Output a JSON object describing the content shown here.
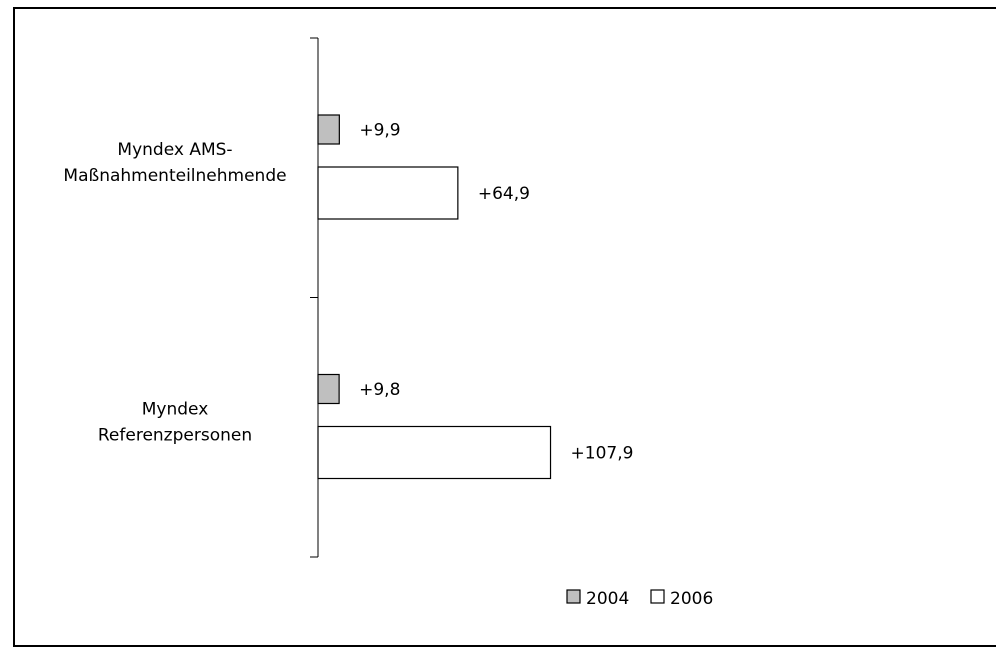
{
  "chart_data": {
    "type": "bar",
    "orientation": "horizontal",
    "categories": [
      "Myndex AMS-\nMaßnahmenteilnehmende",
      "Myndex\nReferenzpersonen"
    ],
    "series": [
      {
        "name": "2004",
        "values": [
          9.9,
          9.8
        ],
        "labels": [
          "+9,9",
          "+9,8"
        ],
        "color": "#bfbfbf"
      },
      {
        "name": "2006",
        "values": [
          64.9,
          107.9
        ],
        "labels": [
          "+64,9",
          "+107,9"
        ],
        "color": "#ffffff"
      }
    ],
    "xlim": [
      0,
      120
    ],
    "legend_position": "bottom",
    "grid": false
  }
}
